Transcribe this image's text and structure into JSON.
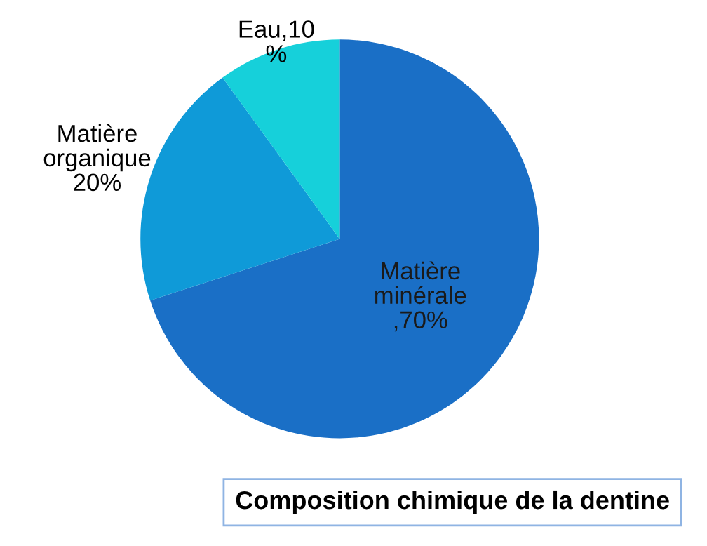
{
  "chart_data": {
    "type": "pie",
    "title": "Composition chimique de la dentine",
    "categories": [
      "Matière minérale",
      "Matière organique",
      "Eau"
    ],
    "values": [
      70,
      20,
      10
    ],
    "value_labels": [
      "\n,70%",
      "\n20%",
      ",10\n%"
    ],
    "colors": [
      "#1a6fc6",
      "#0f9ad8",
      "#16d0da"
    ]
  }
}
